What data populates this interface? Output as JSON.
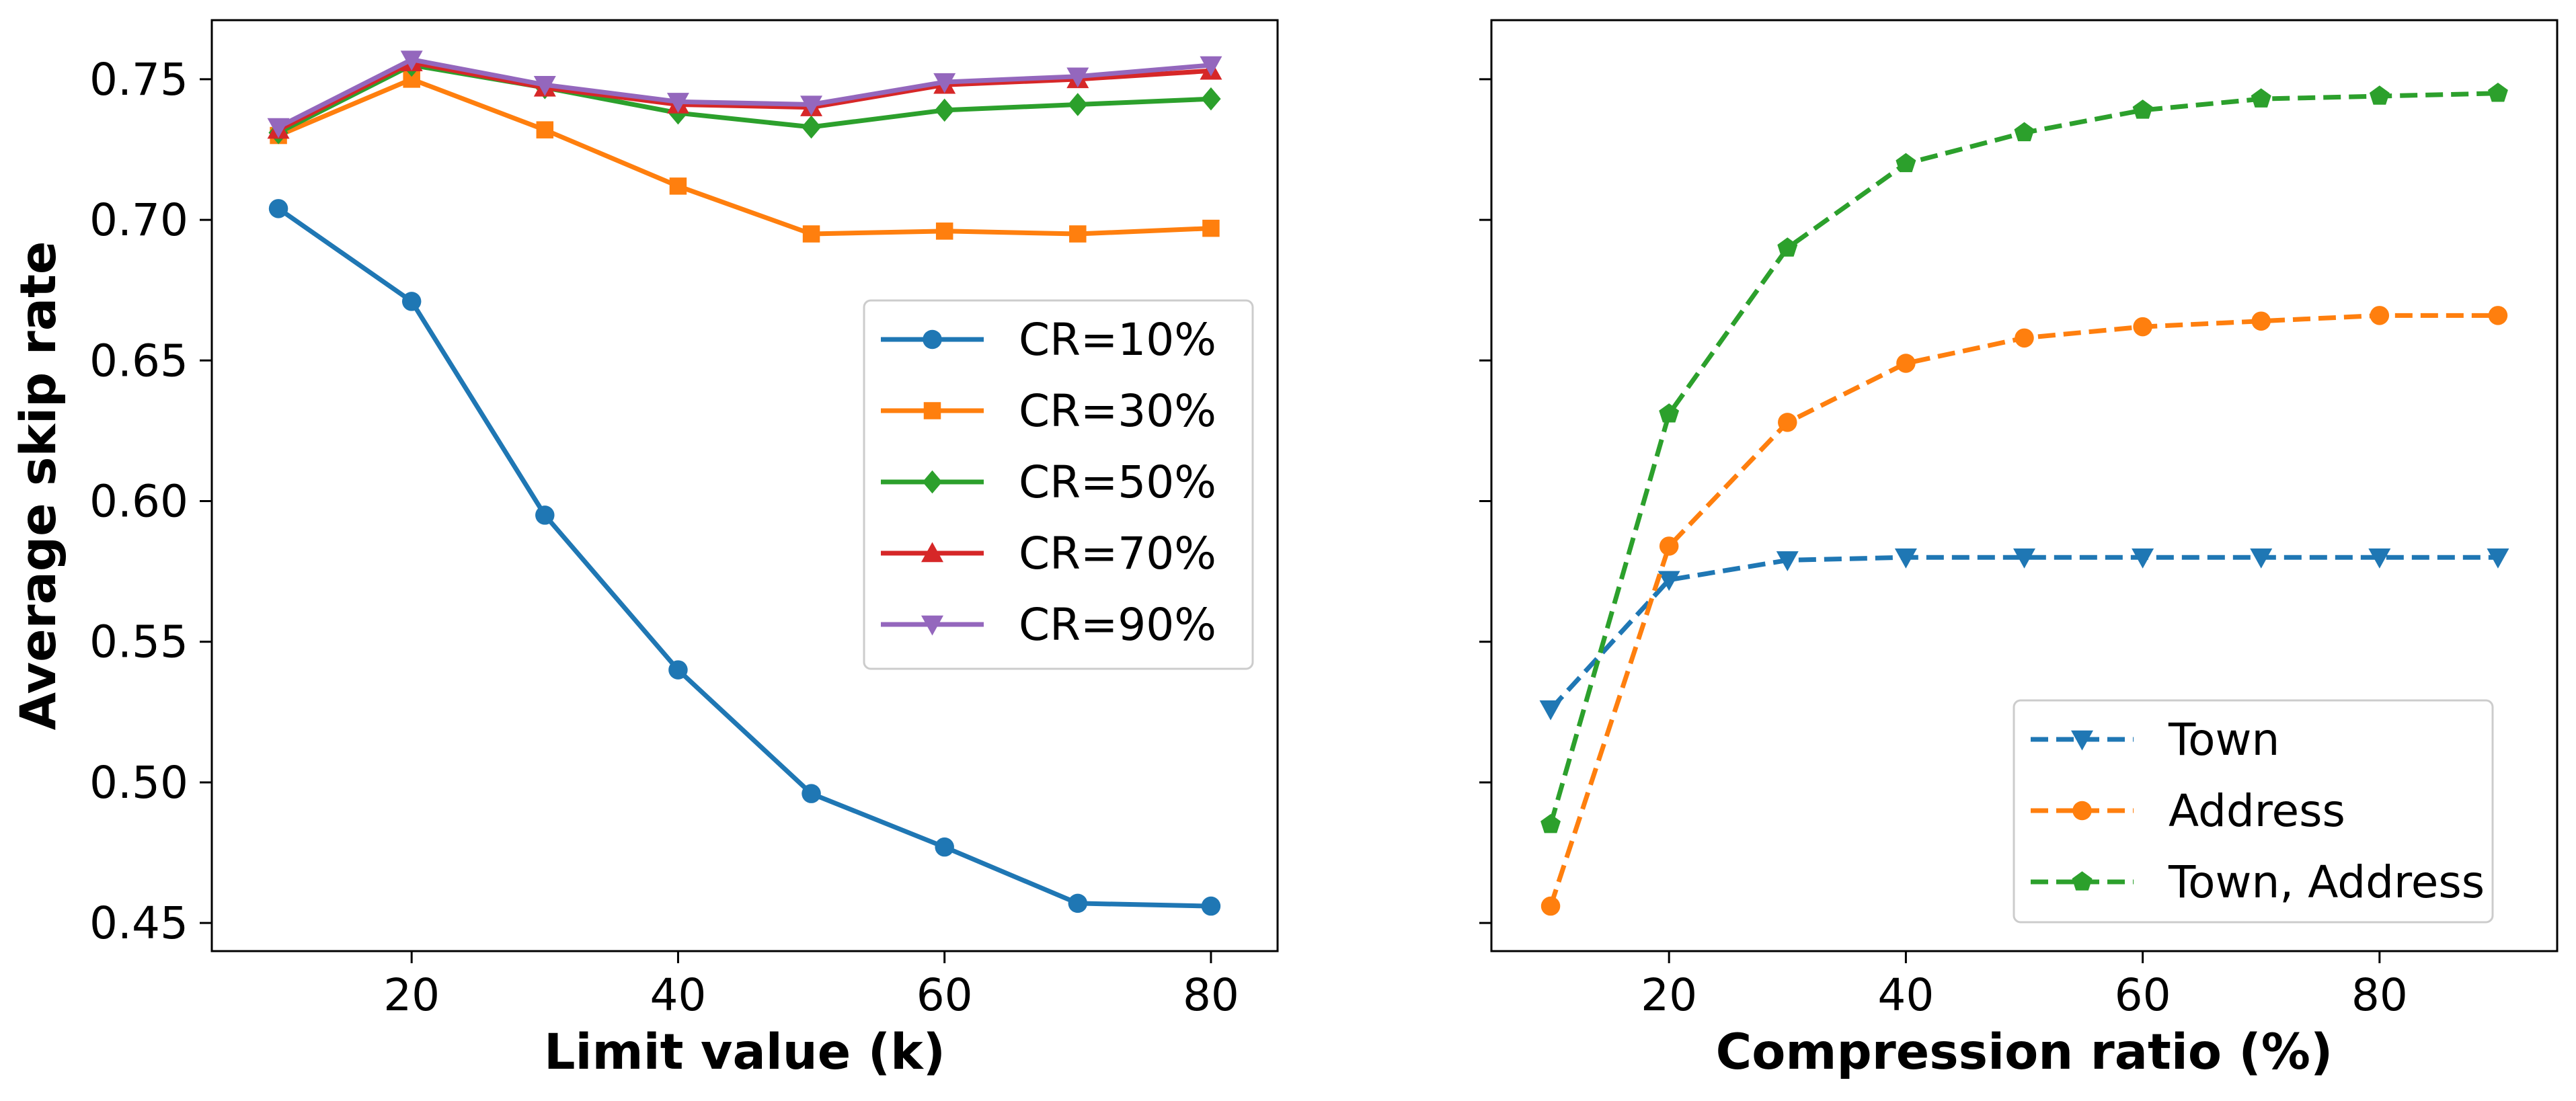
{
  "chart_data": [
    {
      "type": "line",
      "xlabel": "Limit value (k)",
      "ylabel": "Average skip rate",
      "xlim": [
        5,
        85
      ],
      "ylim": [
        0.44,
        0.771
      ],
      "xticks": [
        20,
        40,
        60,
        80
      ],
      "yticks": [
        0.45,
        0.5,
        0.55,
        0.6,
        0.65,
        0.7,
        0.75
      ],
      "grid": false,
      "legend_position": "center-right",
      "x": [
        10,
        20,
        30,
        40,
        50,
        60,
        70,
        80
      ],
      "series": [
        {
          "name": "CR=10%",
          "color": "#1f77b4",
          "marker": "circle",
          "dash": "solid",
          "values": [
            0.704,
            0.671,
            0.595,
            0.54,
            0.496,
            0.477,
            0.457,
            0.456
          ]
        },
        {
          "name": "CR=30%",
          "color": "#ff7f0e",
          "marker": "square",
          "dash": "solid",
          "values": [
            0.73,
            0.75,
            0.732,
            0.712,
            0.695,
            0.696,
            0.695,
            0.697
          ]
        },
        {
          "name": "CR=50%",
          "color": "#2ca02c",
          "marker": "diamond",
          "dash": "solid",
          "values": [
            0.731,
            0.755,
            0.747,
            0.738,
            0.733,
            0.739,
            0.741,
            0.743
          ]
        },
        {
          "name": "CR=70%",
          "color": "#d62728",
          "marker": "triangle-up",
          "dash": "solid",
          "values": [
            0.732,
            0.756,
            0.747,
            0.741,
            0.74,
            0.748,
            0.75,
            0.753
          ]
        },
        {
          "name": "CR=90%",
          "color": "#9467bd",
          "marker": "triangle-down",
          "dash": "solid",
          "values": [
            0.733,
            0.757,
            0.748,
            0.742,
            0.741,
            0.749,
            0.751,
            0.755
          ]
        }
      ]
    },
    {
      "type": "line",
      "xlabel": "Compression ratio (%)",
      "ylabel": "",
      "xlim": [
        5,
        95
      ],
      "ylim": [
        0.44,
        0.771
      ],
      "xticks": [
        20,
        40,
        60,
        80
      ],
      "yticks": [
        0.45,
        0.5,
        0.55,
        0.6,
        0.65,
        0.7,
        0.75
      ],
      "shared_y": true,
      "grid": false,
      "legend_position": "lower-right",
      "x": [
        10,
        20,
        30,
        40,
        50,
        60,
        70,
        80,
        90
      ],
      "series": [
        {
          "name": "Town",
          "color": "#1f77b4",
          "marker": "triangle-down",
          "dash": "dashed",
          "values": [
            0.526,
            0.572,
            0.579,
            0.58,
            0.58,
            0.58,
            0.58,
            0.58,
            0.58
          ]
        },
        {
          "name": "Address",
          "color": "#ff7f0e",
          "marker": "circle",
          "dash": "dashed",
          "values": [
            0.456,
            0.584,
            0.628,
            0.649,
            0.658,
            0.662,
            0.664,
            0.666,
            0.666
          ]
        },
        {
          "name": "Town, Address",
          "color": "#2ca02c",
          "marker": "pentagon",
          "dash": "dashed",
          "values": [
            0.485,
            0.631,
            0.69,
            0.72,
            0.731,
            0.739,
            0.743,
            0.744,
            0.745
          ]
        }
      ]
    }
  ]
}
